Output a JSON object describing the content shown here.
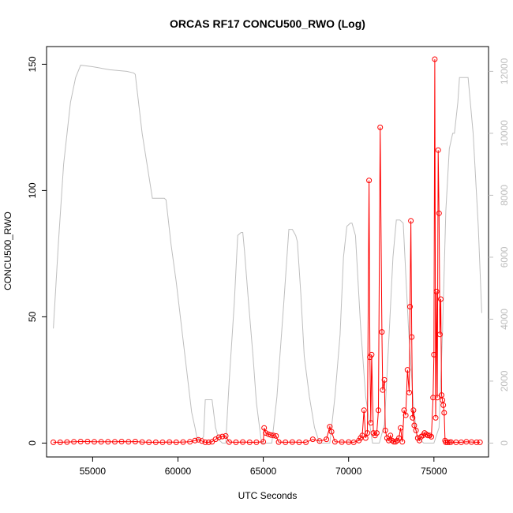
{
  "chart_data": {
    "type": "line",
    "title": "ORCAS RF17 CONCU500_RWO (Log)",
    "xlabel": "UTC Seconds",
    "ylabel": "CONCU500_RWO",
    "xlim": [
      52300,
      78200
    ],
    "ylim": [
      -5.5,
      157
    ],
    "y2lim": [
      -448,
      12800
    ],
    "x_ticks": [
      55000,
      60000,
      65000,
      70000,
      75000
    ],
    "x_tick_labels": [
      "55000",
      "60000",
      "65000",
      "70000",
      "75000"
    ],
    "y_ticks": [
      0,
      50,
      100,
      150
    ],
    "y_tick_labels": [
      "0",
      "50",
      "100",
      "150"
    ],
    "y2_ticks": [
      0,
      2000,
      4000,
      6000,
      8000,
      10000,
      12000
    ],
    "y2_tick_labels": [
      "0",
      "2000",
      "4000",
      "6000",
      "8000",
      "10000",
      "12000"
    ],
    "colors": {
      "primary": "#ff0000",
      "secondary": "#bebebe",
      "axis": "#000000",
      "right_axis": "#bdbdbd"
    },
    "series": [
      {
        "axis": "left",
        "style": "line+circle-markers",
        "color": "#ff0000",
        "x": [
          52700,
          53100,
          53500,
          53900,
          54300,
          54700,
          55100,
          55500,
          55900,
          56300,
          56700,
          57100,
          57500,
          57900,
          58300,
          58700,
          59100,
          59500,
          59900,
          60300,
          60700,
          61000,
          61200,
          61400,
          61600,
          61800,
          62000,
          62200,
          62400,
          62600,
          62800,
          63000,
          63400,
          63800,
          64200,
          64600,
          65000,
          65050,
          65150,
          65300,
          65450,
          65600,
          65750,
          65900,
          66300,
          66700,
          67100,
          67500,
          67900,
          68300,
          68700,
          68900,
          69000,
          69200,
          69600,
          70000,
          70300,
          70600,
          70700,
          70800,
          70900,
          71000,
          71100,
          71200,
          71250,
          71300,
          71350,
          71450,
          71550,
          71650,
          71750,
          71850,
          71950,
          72000,
          72100,
          72150,
          72250,
          72350,
          72450,
          72550,
          72650,
          72750,
          72850,
          72950,
          73050,
          73150,
          73250,
          73350,
          73450,
          73550,
          73600,
          73650,
          73700,
          73750,
          73800,
          73850,
          73950,
          74050,
          74150,
          74250,
          74350,
          74450,
          74550,
          74650,
          74750,
          74850,
          74950,
          75000,
          75050,
          75100,
          75150,
          75200,
          75250,
          75300,
          75350,
          75400,
          75450,
          75500,
          75550,
          75600,
          75650,
          75700,
          75800,
          75900,
          76000,
          76300,
          76600,
          76900,
          77200,
          77500,
          77700
        ],
        "values": [
          0.3,
          0.3,
          0.4,
          0.5,
          0.6,
          0.6,
          0.5,
          0.5,
          0.5,
          0.5,
          0.6,
          0.5,
          0.6,
          0.4,
          0.3,
          0.3,
          0.3,
          0.4,
          0.3,
          0.4,
          0.5,
          1.0,
          1.3,
          0.8,
          0.3,
          0.3,
          0.5,
          1.5,
          2.3,
          2.6,
          2.8,
          0.4,
          0.3,
          0.4,
          0.3,
          0.3,
          0.5,
          6.0,
          4.0,
          3.5,
          3.2,
          3.0,
          2.8,
          0.4,
          0.3,
          0.4,
          0.3,
          0.3,
          1.5,
          0.8,
          1.5,
          6.5,
          4.5,
          0.5,
          0.4,
          0.4,
          0.3,
          1.0,
          2.0,
          3.0,
          13.0,
          2.0,
          4.0,
          104.0,
          34.0,
          8.0,
          35.0,
          4.0,
          3.0,
          4.0,
          13.0,
          125.0,
          44.0,
          21.0,
          25.0,
          5.0,
          2.0,
          1.0,
          3.0,
          1.0,
          0.5,
          0.5,
          1.0,
          2.0,
          6.0,
          0.5,
          13.0,
          11.0,
          29.0,
          20.0,
          54.0,
          88.0,
          42.0,
          10.0,
          13.0,
          7.0,
          5.0,
          2.0,
          1.0,
          2.5,
          3.0,
          4.0,
          3.5,
          3.0,
          3.0,
          2.5,
          18.0,
          35.0,
          152.0,
          10.0,
          60.0,
          18.0,
          116.0,
          91.0,
          43.0,
          57.0,
          19.0,
          17.0,
          15.0,
          12.0,
          1.0,
          0.3,
          0.3,
          0.3,
          0.4,
          0.3,
          0.3,
          0.5,
          0.4,
          0.3,
          0.3
        ]
      },
      {
        "axis": "right",
        "style": "line",
        "color": "#bebebe",
        "x": [
          52700,
          53000,
          53300,
          53700,
          54000,
          54300,
          55000,
          56000,
          57000,
          57400,
          57500,
          57900,
          58500,
          59200,
          59300,
          59600,
          59900,
          60200,
          60500,
          60800,
          61000,
          61100,
          61300,
          61500,
          61600,
          62000,
          62200,
          62400,
          62600,
          62800,
          63000,
          63300,
          63500,
          63700,
          63800,
          63900,
          64100,
          64400,
          64600,
          64900,
          65200,
          65500,
          65800,
          66200,
          66500,
          66700,
          66900,
          67000,
          67200,
          67400,
          67700,
          68000,
          68300,
          68600,
          68900,
          69200,
          69500,
          69700,
          69900,
          70100,
          70200,
          70400,
          70700,
          71000,
          71400,
          71800,
          72100,
          72400,
          72600,
          72800,
          73000,
          73200,
          73500,
          73800,
          74000,
          74200,
          74400,
          74600,
          74800,
          75000,
          75300,
          75500,
          75700,
          75900,
          76100,
          76200,
          76400,
          76500,
          76600,
          76800,
          77000,
          77300,
          77600,
          77800
        ],
        "values": [
          3700,
          6500,
          9000,
          11000,
          11800,
          12200,
          12150,
          12050,
          12000,
          11950,
          11900,
          10000,
          7900,
          7900,
          7850,
          6400,
          5200,
          3800,
          2400,
          1000,
          500,
          200,
          100,
          200,
          1400,
          1400,
          500,
          100,
          0,
          0,
          2000,
          4500,
          6700,
          6800,
          6800,
          6200,
          4800,
          2800,
          1300,
          0,
          0,
          0,
          1500,
          4500,
          6900,
          6900,
          6700,
          6500,
          4800,
          2800,
          1500,
          500,
          0,
          0,
          0,
          1500,
          3500,
          6000,
          7000,
          7100,
          7100,
          6700,
          3800,
          1500,
          0,
          0,
          600,
          3800,
          6000,
          7200,
          7200,
          7100,
          3800,
          1200,
          200,
          100,
          0,
          0,
          0,
          0,
          500,
          3500,
          7500,
          9500,
          10000,
          10000,
          11000,
          11800,
          11800,
          11800,
          11800,
          10000,
          7000,
          4200
        ]
      }
    ]
  }
}
